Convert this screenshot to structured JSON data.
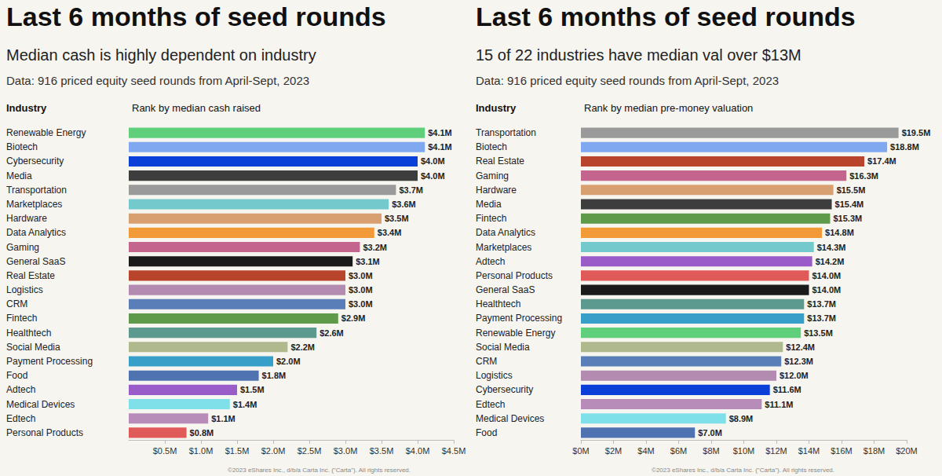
{
  "chart_data": [
    {
      "type": "bar",
      "orientation": "horizontal",
      "title": "Last 6 months of seed rounds",
      "subtitle": "Median cash is highly dependent on industry",
      "note": "Data: 916 priced equity seed rounds from April-Sept, 2023",
      "ylabel": "Industry",
      "xlabel": "Rank by median cash raised",
      "footer": "©2023 eShares Inc., d/b/a Carta Inc. (\"Carta\"). All rights reserved.",
      "categories": [
        "Renewable Energy",
        "Biotech",
        "Cybersecurity",
        "Media",
        "Transportation",
        "Marketplaces",
        "Hardware",
        "Data Analytics",
        "Gaming",
        "General SaaS",
        "Real Estate",
        "Logistics",
        "CRM",
        "Fintech",
        "Healthtech",
        "Social Media",
        "Payment Processing",
        "Food",
        "Adtech",
        "Medical Devices",
        "Edtech",
        "Personal Products"
      ],
      "values": [
        4.1,
        4.1,
        4.0,
        4.0,
        3.7,
        3.6,
        3.5,
        3.4,
        3.2,
        3.1,
        3.0,
        3.0,
        3.0,
        2.9,
        2.6,
        2.2,
        2.0,
        1.8,
        1.5,
        1.4,
        1.1,
        0.8
      ],
      "value_labels": [
        "$4.1M",
        "$4.1M",
        "$4.0M",
        "$4.0M",
        "$3.7M",
        "$3.6M",
        "$3.5M",
        "$3.4M",
        "$3.2M",
        "$3.1M",
        "$3.0M",
        "$3.0M",
        "$3.0M",
        "$2.9M",
        "$2.6M",
        "$2.2M",
        "$2.0M",
        "$1.8M",
        "$1.5M",
        "$1.4M",
        "$1.1M",
        "$0.8M"
      ],
      "colors": [
        "#5fcf7c",
        "#7fa8f0",
        "#0a3fd8",
        "#3d3d3d",
        "#9a9a9a",
        "#73c9cc",
        "#d89f70",
        "#f29a38",
        "#c3658c",
        "#1a1a1a",
        "#b8442c",
        "#b38ab0",
        "#5a7fb8",
        "#5e9a4a",
        "#5c9a8f",
        "#b0b88e",
        "#38a0c8",
        "#4f73b0",
        "#9a5cc8",
        "#7fe0ea",
        "#b88cb8",
        "#e05a5a"
      ],
      "xlim": [
        0,
        4.5
      ],
      "xticks": [
        {
          "value": 0.5,
          "label": "$0.5M"
        },
        {
          "value": 1.0,
          "label": "$1.0M"
        },
        {
          "value": 1.5,
          "label": "$1.5M"
        },
        {
          "value": 2.0,
          "label": "$2.0M"
        },
        {
          "value": 2.5,
          "label": "$2.5M"
        },
        {
          "value": 3.0,
          "label": "$3.0M"
        },
        {
          "value": 3.5,
          "label": "$3.5M"
        },
        {
          "value": 4.0,
          "label": "$4.0M"
        },
        {
          "value": 4.5,
          "label": "$4.5M"
        }
      ],
      "grid": false,
      "data_labels": true
    },
    {
      "type": "bar",
      "orientation": "horizontal",
      "title": "Last 6 months of seed rounds",
      "subtitle": "15 of 22 industries have median val over $13M",
      "note": "Data: 916 priced equity seed rounds from April-Sept, 2023",
      "ylabel": "Industry",
      "xlabel": "Rank by median pre-money valuation",
      "footer": "©2023 eShares Inc., d/b/a Carta Inc. (\"Carta\"). All rights reserved.",
      "categories": [
        "Transportation",
        "Biotech",
        "Real Estate",
        "Gaming",
        "Hardware",
        "Media",
        "Fintech",
        "Data Analytics",
        "Marketplaces",
        "Adtech",
        "Personal Products",
        "General SaaS",
        "Healthtech",
        "Payment Processing",
        "Renewable Energy",
        "Social Media",
        "CRM",
        "Logistics",
        "Cybersecurity",
        "Edtech",
        "Medical Devices",
        "Food"
      ],
      "values": [
        19.5,
        18.8,
        17.4,
        16.3,
        15.5,
        15.4,
        15.3,
        14.8,
        14.3,
        14.2,
        14.0,
        14.0,
        13.7,
        13.7,
        13.5,
        12.4,
        12.3,
        12.0,
        11.6,
        11.1,
        8.9,
        7.0
      ],
      "value_labels": [
        "$19.5M",
        "$18.8M",
        "$17.4M",
        "$16.3M",
        "$15.5M",
        "$15.4M",
        "$15.3M",
        "$14.8M",
        "$14.3M",
        "$14.2M",
        "$14.0M",
        "$14.0M",
        "$13.7M",
        "$13.7M",
        "$13.5M",
        "$12.4M",
        "$12.3M",
        "$12.0M",
        "$11.6M",
        "$11.1M",
        "$8.9M",
        "$7.0M"
      ],
      "colors": [
        "#9a9a9a",
        "#7fa8f0",
        "#b8442c",
        "#c3658c",
        "#d89f70",
        "#3d3d3d",
        "#5e9a4a",
        "#f29a38",
        "#73c9cc",
        "#9a5cc8",
        "#e05a5a",
        "#1a1a1a",
        "#5c9a8f",
        "#38a0c8",
        "#5fcf7c",
        "#b0b88e",
        "#5a7fb8",
        "#b38ab0",
        "#0a3fd8",
        "#b88cb8",
        "#7fe0ea",
        "#4f73b0"
      ],
      "xlim": [
        0,
        20
      ],
      "xticks": [
        {
          "value": 0,
          "label": "$0M"
        },
        {
          "value": 2,
          "label": "$2M"
        },
        {
          "value": 4,
          "label": "$4M"
        },
        {
          "value": 6,
          "label": "$6M"
        },
        {
          "value": 8,
          "label": "$8M"
        },
        {
          "value": 10,
          "label": "$10M"
        },
        {
          "value": 12,
          "label": "$12M"
        },
        {
          "value": 14,
          "label": "$14M"
        },
        {
          "value": 16,
          "label": "$16M"
        },
        {
          "value": 18,
          "label": "$18M"
        },
        {
          "value": 20,
          "label": "$20M"
        }
      ],
      "grid": false,
      "data_labels": true
    }
  ]
}
